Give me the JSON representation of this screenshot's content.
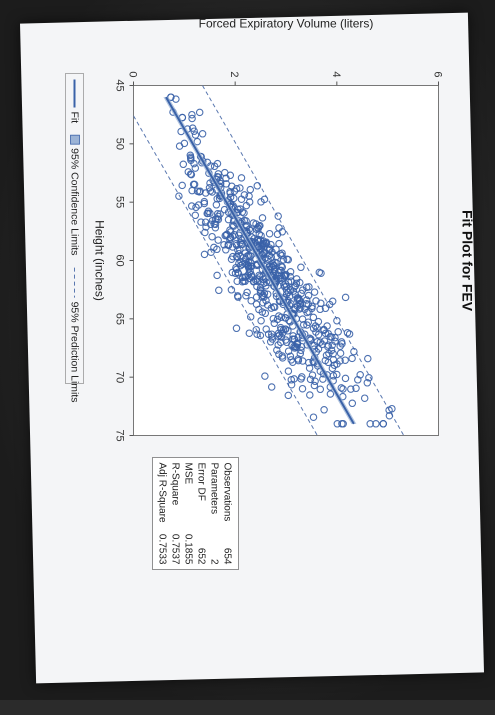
{
  "chart_data": {
    "type": "scatter",
    "title": "Fit Plot for FEV",
    "xlabel": "Height (inches)",
    "ylabel": "Forced Expiratory Volume (liters)",
    "xlim": [
      45,
      75
    ],
    "ylim": [
      0,
      6
    ],
    "x_ticks": [
      "45",
      "50",
      "55",
      "60",
      "65",
      "70",
      "75"
    ],
    "y_ticks": [
      "0",
      "2",
      "4",
      "6"
    ],
    "fit_line": {
      "intercept": -5.433,
      "slope": 0.132
    },
    "confidence_band_halfwidth": 0.05,
    "prediction_band_halfwidth": 0.85,
    "point_count": 654,
    "point_cloud": {
      "x_mean": 61.1,
      "x_sd": 5.7,
      "x_min": 46,
      "x_max": 74,
      "residual_sd": 0.43
    },
    "legend": [
      {
        "label": "Fit",
        "kind": "line"
      },
      {
        "label": "95% Confidence Limits",
        "kind": "band"
      },
      {
        "label": "95% Prediction Limits",
        "kind": "dashed"
      }
    ],
    "stats_table": [
      {
        "name": "Observations",
        "value": "654"
      },
      {
        "name": "Parameters",
        "value": "2"
      },
      {
        "name": "Error DF",
        "value": "652"
      },
      {
        "name": "MSE",
        "value": "0.1855"
      },
      {
        "name": "R-Square",
        "value": "0.7537"
      },
      {
        "name": "Adj R-Square",
        "value": "0.7533"
      }
    ],
    "colors": {
      "points": "#3a62a8",
      "fit": "#3a62a8",
      "confidence": "#9bb3d6",
      "prediction": "#5a78b0",
      "paper": "#f4f5f7",
      "plot_bg": "#ffffff"
    }
  }
}
